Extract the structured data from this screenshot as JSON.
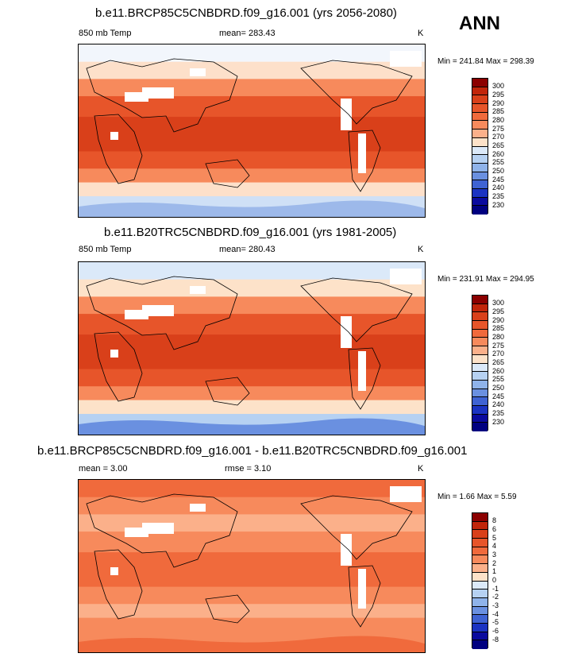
{
  "season": "ANN",
  "panels": [
    {
      "title": "b.e11.BRCP85C5CNBDRD.f09_g16.001 (yrs 2056-2080)",
      "left_label": "850 mb Temp",
      "center_label": "mean= 283.43",
      "units": "K",
      "minmax": "Min = 241.84 Max = 298.39",
      "colorbar": {
        "labels": [
          "300",
          "295",
          "290",
          "285",
          "280",
          "275",
          "270",
          "265",
          "260",
          "255",
          "250",
          "245",
          "240",
          "235",
          "230"
        ],
        "colors": [
          "#8b0000",
          "#c1250a",
          "#d9401a",
          "#e7552a",
          "#f06a3c",
          "#f78a5c",
          "#fbb08a",
          "#fde2c9",
          "#dbe9f9",
          "#b6d1f2",
          "#8fb3ea",
          "#6a90e0",
          "#3f63d3",
          "#1b33c2",
          "#0a0a9e",
          "#000080"
        ]
      },
      "map_colors": {
        "top": "#f2f6fc",
        "mid": "#fde0ca",
        "warm": "#f78a5c",
        "hot": "#e7552a",
        "core": "#d9401a",
        "south": "#cfe0f6",
        "ice": "#9db9ea"
      }
    },
    {
      "title": "b.e11.B20TRC5CNBDRD.f09_g16.001 (yrs 1981-2005)",
      "left_label": "850 mb Temp",
      "center_label": "mean= 280.43",
      "units": "K",
      "minmax": "Min = 231.91 Max = 294.95",
      "colorbar": {
        "labels": [
          "300",
          "295",
          "290",
          "285",
          "280",
          "275",
          "270",
          "265",
          "260",
          "255",
          "250",
          "245",
          "240",
          "235",
          "230"
        ],
        "colors": [
          "#8b0000",
          "#c1250a",
          "#d9401a",
          "#e7552a",
          "#f06a3c",
          "#f78a5c",
          "#fbb08a",
          "#fde2c9",
          "#dbe9f9",
          "#b6d1f2",
          "#8fb3ea",
          "#6a90e0",
          "#3f63d3",
          "#1b33c2",
          "#0a0a9e",
          "#000080"
        ]
      },
      "map_colors": {
        "top": "#dbe9f9",
        "mid": "#fde2c9",
        "warm": "#f78a5c",
        "hot": "#e7552a",
        "core": "#d9401a",
        "south": "#b6d1f2",
        "ice": "#6a90e0"
      }
    },
    {
      "title": "b.e11.BRCP85C5CNBDRD.f09_g16.001 - b.e11.B20TRC5CNBDRD.f09_g16.001",
      "left_label": "mean =   3.00",
      "center_label": "rmse =   3.10",
      "units": "K",
      "minmax": "Min =   1.66 Max =   5.59",
      "colorbar": {
        "labels": [
          "8",
          "6",
          "5",
          "4",
          "3",
          "2",
          "1",
          "0",
          "-1",
          "-2",
          "-3",
          "-4",
          "-5",
          "-6",
          "-8"
        ],
        "colors": [
          "#8b0000",
          "#c1250a",
          "#d9401a",
          "#e7552a",
          "#f06a3c",
          "#f78a5c",
          "#fbb08a",
          "#fde2c9",
          "#dbe9f9",
          "#b6d1f2",
          "#8fb3ea",
          "#6a90e0",
          "#3f63d3",
          "#1b33c2",
          "#0a0a9e",
          "#000080"
        ]
      },
      "map_colors": {
        "top": "#f06a3c",
        "mid": "#f78a5c",
        "warm": "#fbb08a",
        "hot": "#f78a5c",
        "core": "#f06a3c",
        "south": "#f78a5c",
        "ice": "#f06a3c"
      }
    }
  ],
  "chart_data": [
    {
      "type": "heatmap",
      "title": "b.e11.BRCP85C5CNBDRD.f09_g16.001 (yrs 2056-2080)",
      "variable": "850 mb Temp",
      "mean": 283.43,
      "units": "K",
      "min": 241.84,
      "max": 298.39,
      "contour_levels": [
        230,
        235,
        240,
        245,
        250,
        255,
        260,
        265,
        270,
        275,
        280,
        285,
        290,
        295,
        300
      ]
    },
    {
      "type": "heatmap",
      "title": "b.e11.B20TRC5CNBDRD.f09_g16.001 (yrs 1981-2005)",
      "variable": "850 mb Temp",
      "mean": 280.43,
      "units": "K",
      "min": 231.91,
      "max": 294.95,
      "contour_levels": [
        230,
        235,
        240,
        245,
        250,
        255,
        260,
        265,
        270,
        275,
        280,
        285,
        290,
        295,
        300
      ]
    },
    {
      "type": "heatmap",
      "title": "b.e11.BRCP85C5CNBDRD.f09_g16.001 - b.e11.B20TRC5CNBDRD.f09_g16.001",
      "mean": 3.0,
      "rmse": 3.1,
      "units": "K",
      "min": 1.66,
      "max": 5.59,
      "contour_levels": [
        -8,
        -6,
        -5,
        -4,
        -3,
        -2,
        -1,
        0,
        1,
        2,
        3,
        4,
        5,
        6,
        8
      ]
    }
  ]
}
